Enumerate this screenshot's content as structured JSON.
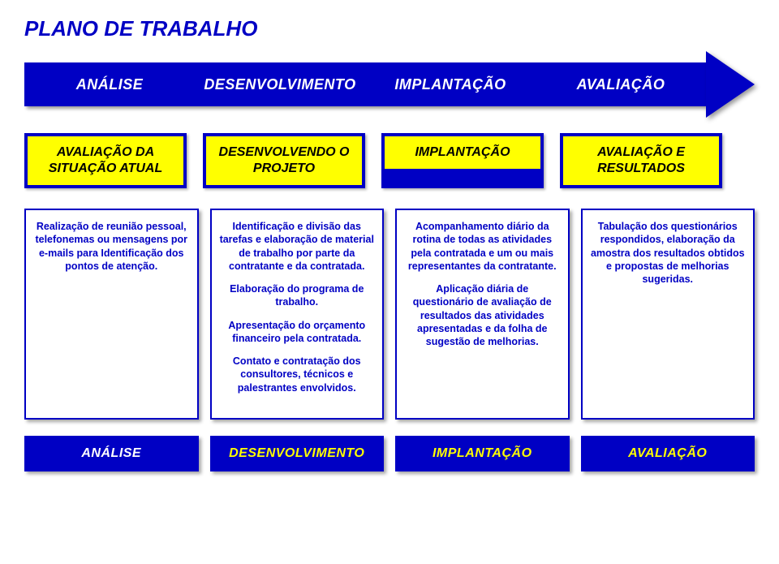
{
  "title": "PLANO DE TRABALHO",
  "colors": {
    "blue": "#0000c4",
    "yellow": "#ffff00",
    "white": "#ffffff",
    "footer_text": [
      "#ffffff",
      "#ffff00",
      "#ffff00",
      "#ffff00"
    ]
  },
  "arrow": {
    "segments": [
      "ANÁLISE",
      "DESENVOLVIMENTO",
      "IMPLANTAÇÃO",
      "AVALIAÇÃO"
    ]
  },
  "row2": [
    "AVALIAÇÃO DA SITUAÇÃO ATUAL",
    "DESENVOLVENDO O PROJETO",
    "IMPLANTAÇÃO",
    "AVALIAÇÃO E RESULTADOS"
  ],
  "cards": [
    {
      "paras": [
        "Realização de reunião pessoal, telefonemas ou mensagens por e-mails para Identificação dos pontos de atenção."
      ]
    },
    {
      "paras": [
        "Identificação e divisão das tarefas e elaboração de material de trabalho por parte da contratante e da contratada.",
        "Elaboração do programa de trabalho.",
        "Apresentação do orçamento financeiro pela contratada.",
        "Contato e contratação dos consultores, técnicos e palestrantes envolvidos."
      ]
    },
    {
      "paras": [
        "Acompanhamento diário da rotina de todas as atividades pela contratada e um ou mais representantes da contratante.",
        "Aplicação diária de questionário de avaliação de resultados das atividades apresentadas e da folha de sugestão de melhorias."
      ]
    },
    {
      "paras": [
        "Tabulação dos questionários respondidos, elaboração da amostra dos resultados obtidos e propostas de melhorias sugeridas."
      ]
    }
  ],
  "footer": [
    "ANÁLISE",
    "DESENVOLVIMENTO",
    "IMPLANTAÇÃO",
    "AVALIAÇÃO"
  ]
}
